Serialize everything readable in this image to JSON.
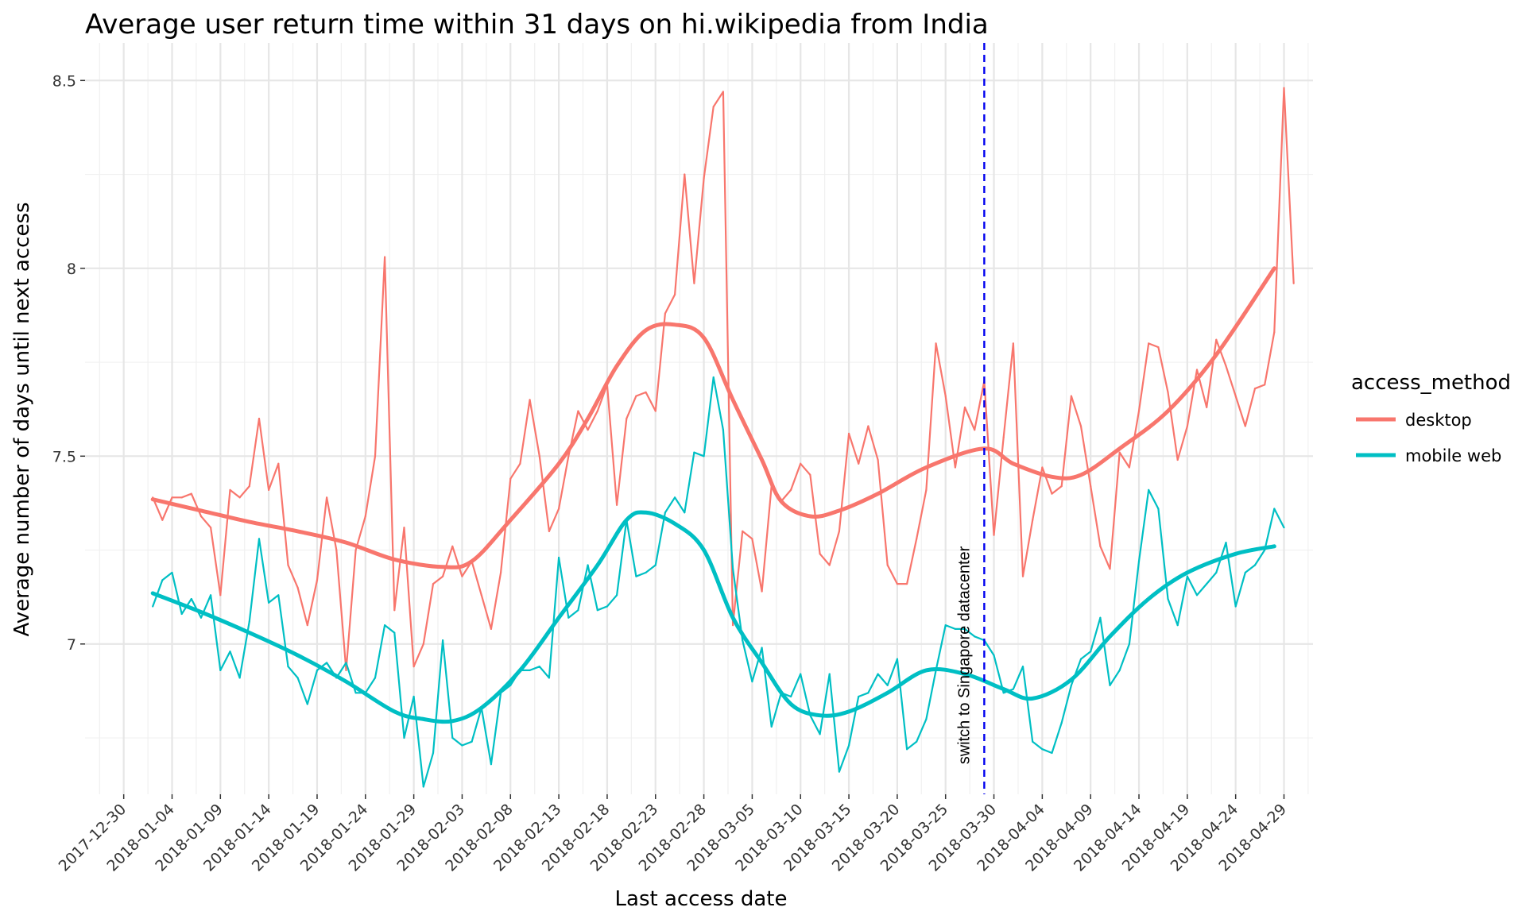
{
  "chart_data": {
    "type": "line",
    "title": "Average user return time within 31 days on hi.wikipedia from India",
    "xlabel": "Last access date",
    "ylabel": "Average number of days until next access",
    "xlim": [
      "2017-12-26",
      "2018-05-02"
    ],
    "ylim": [
      6.6,
      8.6
    ],
    "x_ticks": [
      "2017-12-30",
      "2018-01-04",
      "2018-01-09",
      "2018-01-14",
      "2018-01-19",
      "2018-01-24",
      "2018-01-29",
      "2018-02-03",
      "2018-02-08",
      "2018-02-13",
      "2018-02-18",
      "2018-02-23",
      "2018-02-28",
      "2018-03-05",
      "2018-03-10",
      "2018-03-15",
      "2018-03-20",
      "2018-03-25",
      "2018-03-30",
      "2018-04-04",
      "2018-04-09",
      "2018-04-14",
      "2018-04-19",
      "2018-04-24",
      "2018-04-29"
    ],
    "y_ticks": [
      7,
      7.5,
      8,
      8.5
    ],
    "y_tick_labels": [
      "7",
      "7.5",
      "8",
      "8.5"
    ],
    "grid": true,
    "x_start": "2018-01-02",
    "legend": {
      "title": "access_method",
      "position": "right"
    },
    "series": [
      {
        "name": "desktop",
        "color": "#F8766D",
        "values": [
          7.39,
          7.33,
          7.39,
          7.39,
          7.4,
          7.34,
          7.31,
          7.13,
          7.41,
          7.39,
          7.42,
          7.6,
          7.41,
          7.48,
          7.21,
          7.15,
          7.05,
          7.17,
          7.39,
          7.25,
          6.93,
          7.25,
          7.34,
          7.5,
          8.03,
          7.09,
          7.31,
          6.94,
          7.0,
          7.16,
          7.18,
          7.26,
          7.18,
          7.22,
          7.13,
          7.04,
          7.19,
          7.44,
          7.48,
          7.65,
          7.5,
          7.3,
          7.36,
          7.5,
          7.62,
          7.57,
          7.62,
          7.69,
          7.37,
          7.6,
          7.66,
          7.67,
          7.62,
          7.88,
          7.93,
          8.25,
          7.96,
          8.24,
          8.43,
          8.47,
          7.05,
          7.3,
          7.28,
          7.14,
          7.42,
          7.38,
          7.41,
          7.48,
          7.45,
          7.24,
          7.21,
          7.3,
          7.56,
          7.48,
          7.58,
          7.49,
          7.21,
          7.16,
          7.16,
          7.28,
          7.41,
          7.8,
          7.66,
          7.47,
          7.63,
          7.57,
          7.7,
          7.29,
          7.55,
          7.8,
          7.18,
          7.33,
          7.47,
          7.4,
          7.42,
          7.66,
          7.58,
          7.42,
          7.26,
          7.2,
          7.51,
          7.47,
          7.62,
          7.8,
          7.79,
          7.67,
          7.49,
          7.58,
          7.73,
          7.63,
          7.81,
          7.74,
          7.66,
          7.58,
          7.68,
          7.69,
          7.83,
          8.48,
          7.96
        ]
      },
      {
        "name": "mobile web",
        "color": "#00BFC4",
        "values": [
          7.1,
          7.17,
          7.19,
          7.08,
          7.12,
          7.07,
          7.13,
          6.93,
          6.98,
          6.91,
          7.06,
          7.28,
          7.11,
          7.13,
          6.94,
          6.91,
          6.84,
          6.93,
          6.95,
          6.91,
          6.95,
          6.87,
          6.87,
          6.91,
          7.05,
          7.03,
          6.75,
          6.86,
          6.62,
          6.71,
          7.01,
          6.75,
          6.73,
          6.74,
          6.83,
          6.68,
          6.87,
          6.89,
          6.93,
          6.93,
          6.94,
          6.91,
          7.23,
          7.07,
          7.09,
          7.21,
          7.09,
          7.1,
          7.13,
          7.33,
          7.18,
          7.19,
          7.21,
          7.35,
          7.39,
          7.35,
          7.51,
          7.5,
          7.71,
          7.57,
          7.2,
          7.01,
          6.9,
          6.99,
          6.78,
          6.87,
          6.86,
          6.92,
          6.81,
          6.76,
          6.92,
          6.66,
          6.73,
          6.86,
          6.87,
          6.92,
          6.89,
          6.96,
          6.72,
          6.74,
          6.8,
          6.93,
          7.05,
          7.04,
          7.04,
          7.02,
          7.01,
          6.97,
          6.87,
          6.88,
          6.94,
          6.74,
          6.72,
          6.71,
          6.79,
          6.89,
          6.96,
          6.98,
          7.07,
          6.89,
          6.93,
          7.0,
          7.22,
          7.41,
          7.36,
          7.12,
          7.05,
          7.18,
          7.13,
          7.16,
          7.19,
          7.27,
          7.1,
          7.19,
          7.21,
          7.25,
          7.36,
          7.31
        ]
      }
    ],
    "smooth": [
      {
        "name": "desktop",
        "color": "#F8766D",
        "points": [
          [
            "2018-01-02",
            7.385
          ],
          [
            "2018-01-07",
            7.355
          ],
          [
            "2018-01-12",
            7.325
          ],
          [
            "2018-01-17",
            7.3
          ],
          [
            "2018-01-22",
            7.27
          ],
          [
            "2018-01-27",
            7.225
          ],
          [
            "2018-02-01",
            7.205
          ],
          [
            "2018-02-04",
            7.22
          ],
          [
            "2018-02-08",
            7.33
          ],
          [
            "2018-02-13",
            7.48
          ],
          [
            "2018-02-16",
            7.6
          ],
          [
            "2018-02-19",
            7.74
          ],
          [
            "2018-02-22",
            7.835
          ],
          [
            "2018-02-25",
            7.85
          ],
          [
            "2018-02-28",
            7.815
          ],
          [
            "2018-03-03",
            7.65
          ],
          [
            "2018-03-06",
            7.49
          ],
          [
            "2018-03-08",
            7.38
          ],
          [
            "2018-03-11",
            7.34
          ],
          [
            "2018-03-14",
            7.355
          ],
          [
            "2018-03-18",
            7.4
          ],
          [
            "2018-03-23",
            7.47
          ],
          [
            "2018-03-29",
            7.52
          ],
          [
            "2018-04-01",
            7.48
          ],
          [
            "2018-04-05",
            7.445
          ],
          [
            "2018-04-08",
            7.45
          ],
          [
            "2018-04-12",
            7.52
          ],
          [
            "2018-04-17",
            7.62
          ],
          [
            "2018-04-22",
            7.77
          ],
          [
            "2018-04-28",
            8.0
          ]
        ]
      },
      {
        "name": "mobile web",
        "color": "#00BFC4",
        "points": [
          [
            "2018-01-02",
            7.135
          ],
          [
            "2018-01-07",
            7.085
          ],
          [
            "2018-01-12",
            7.03
          ],
          [
            "2018-01-17",
            6.97
          ],
          [
            "2018-01-22",
            6.9
          ],
          [
            "2018-01-27",
            6.82
          ],
          [
            "2018-01-30",
            6.8
          ],
          [
            "2018-02-02",
            6.795
          ],
          [
            "2018-02-05",
            6.83
          ],
          [
            "2018-02-09",
            6.93
          ],
          [
            "2018-02-13",
            7.07
          ],
          [
            "2018-02-17",
            7.21
          ],
          [
            "2018-02-20",
            7.33
          ],
          [
            "2018-02-22",
            7.35
          ],
          [
            "2018-02-25",
            7.32
          ],
          [
            "2018-02-28",
            7.25
          ],
          [
            "2018-03-03",
            7.07
          ],
          [
            "2018-03-06",
            6.95
          ],
          [
            "2018-03-09",
            6.84
          ],
          [
            "2018-03-12",
            6.81
          ],
          [
            "2018-03-15",
            6.82
          ],
          [
            "2018-03-19",
            6.87
          ],
          [
            "2018-03-23",
            6.93
          ],
          [
            "2018-03-27",
            6.92
          ],
          [
            "2018-03-31",
            6.88
          ],
          [
            "2018-04-03",
            6.855
          ],
          [
            "2018-04-07",
            6.905
          ],
          [
            "2018-04-11",
            7.02
          ],
          [
            "2018-04-15",
            7.12
          ],
          [
            "2018-04-19",
            7.19
          ],
          [
            "2018-04-24",
            7.24
          ],
          [
            "2018-04-28",
            7.26
          ]
        ]
      }
    ],
    "annotations": [
      {
        "type": "vline",
        "x": "2018-03-29",
        "color": "#0000EE",
        "label": "switch to Singapore datacenter",
        "label_y": 6.97
      }
    ]
  }
}
